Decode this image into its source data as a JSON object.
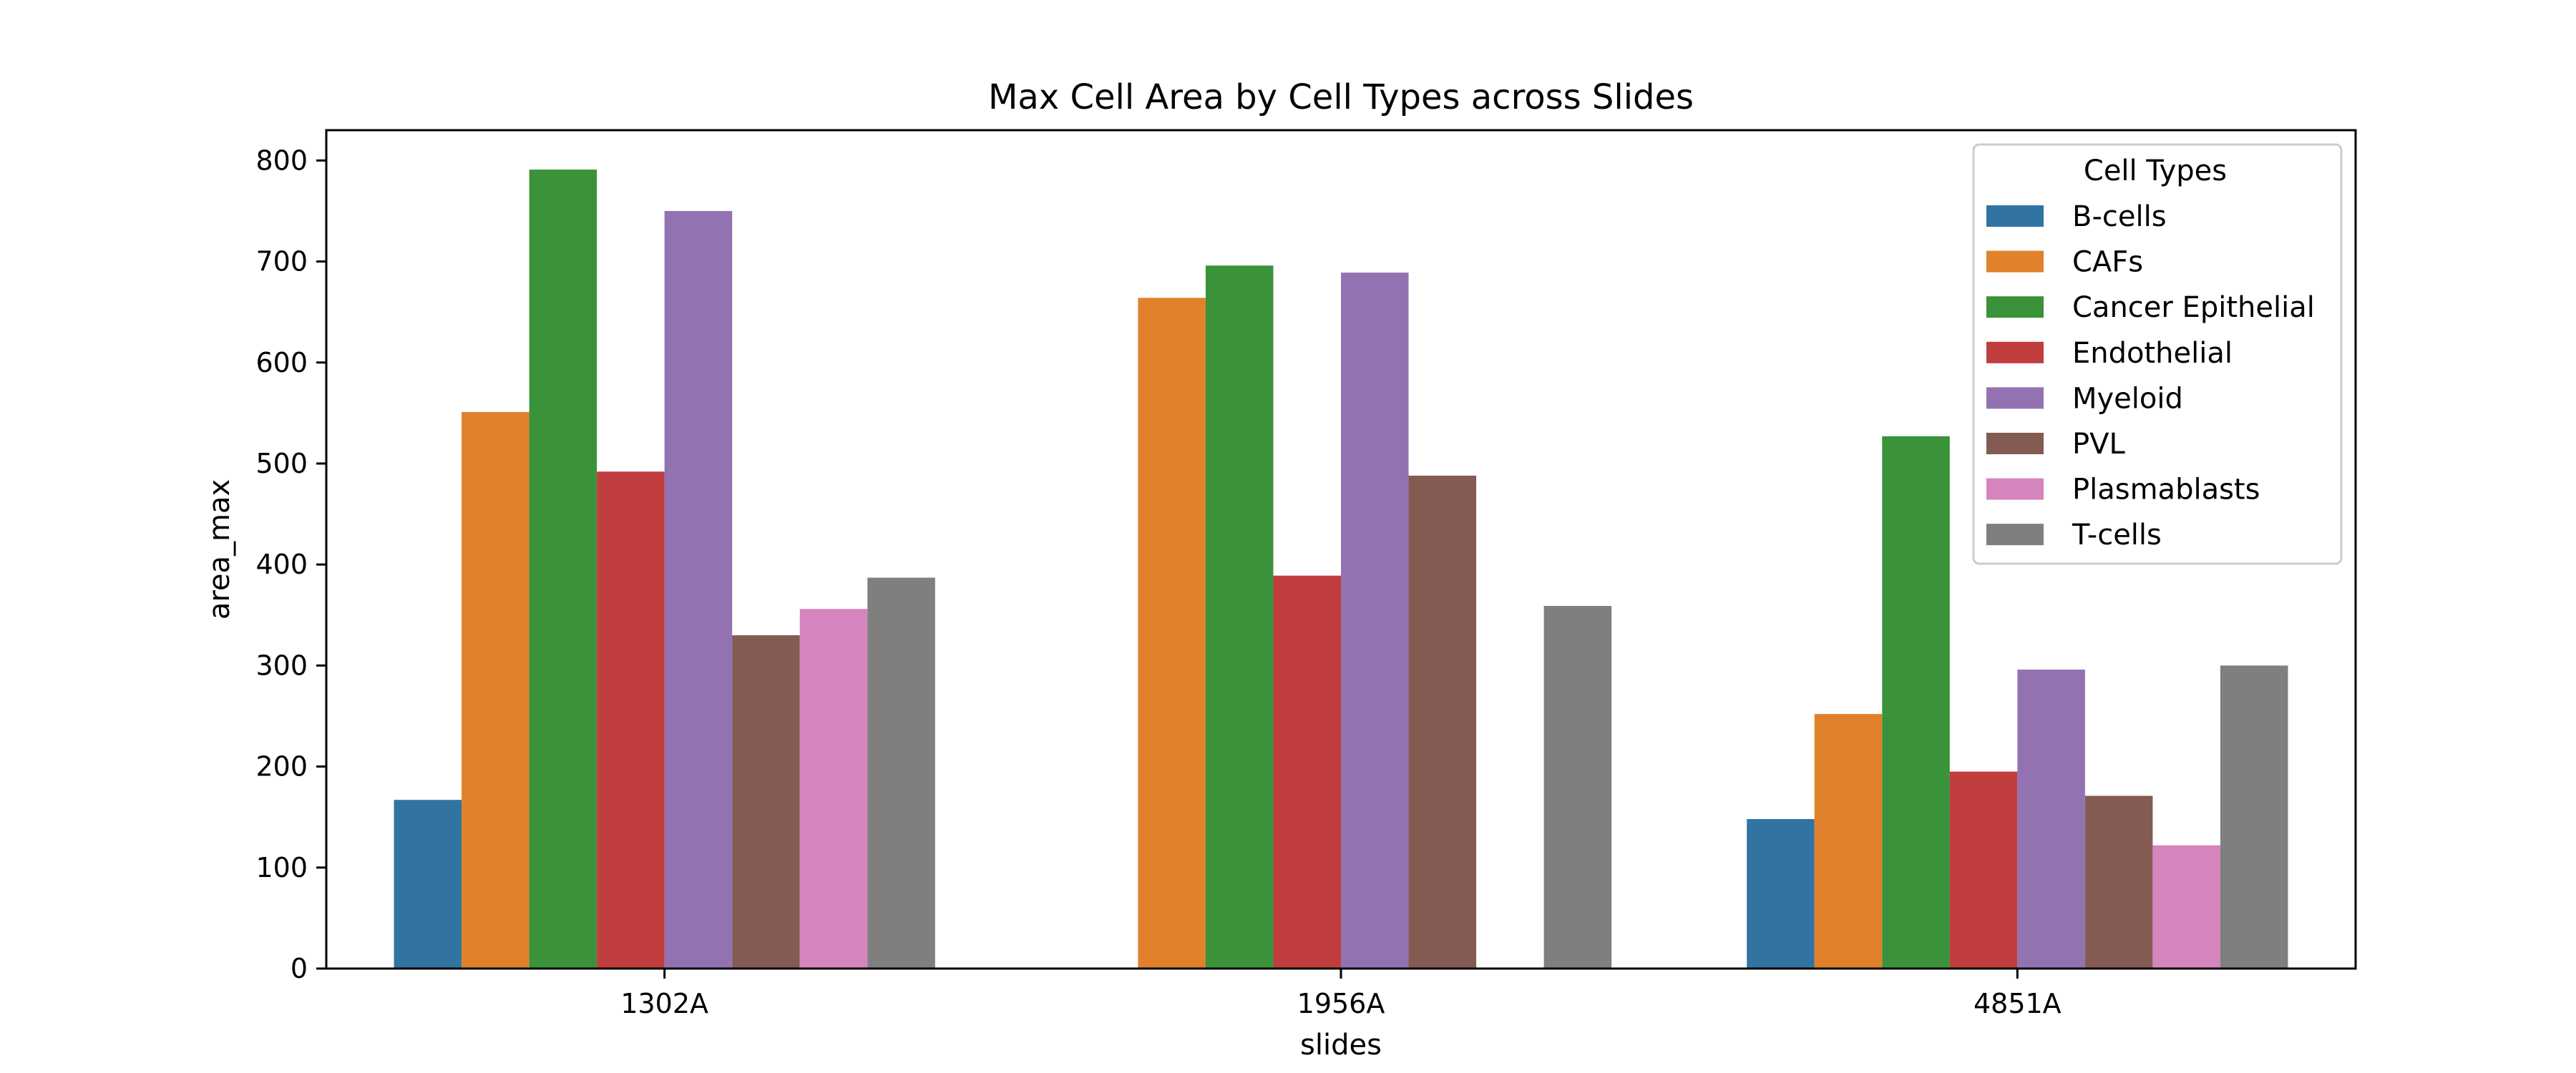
{
  "chart_data": {
    "type": "bar",
    "title": "Max Cell Area by Cell Types across Slides",
    "xlabel": "slides",
    "ylabel": "area_max",
    "categories": [
      "1302A",
      "1956A",
      "4851A"
    ],
    "ylim": [
      0,
      830
    ],
    "yticks": [
      0,
      100,
      200,
      300,
      400,
      500,
      600,
      700,
      800
    ],
    "grid": false,
    "legend": {
      "title": "Cell Types",
      "placement": "top-right"
    },
    "series": [
      {
        "name": "B-cells",
        "color": "#3274a1",
        "values": [
          167,
          null,
          148
        ]
      },
      {
        "name": "CAFs",
        "color": "#e1812c",
        "values": [
          551,
          664,
          252
        ]
      },
      {
        "name": "Cancer Epithelial",
        "color": "#3a923a",
        "values": [
          791,
          696,
          527
        ]
      },
      {
        "name": "Endothelial",
        "color": "#c03d3e",
        "values": [
          492,
          389,
          195
        ]
      },
      {
        "name": "Myeloid",
        "color": "#9372b2",
        "values": [
          750,
          689,
          296
        ]
      },
      {
        "name": "PVL",
        "color": "#845b53",
        "values": [
          330,
          488,
          171
        ]
      },
      {
        "name": "Plasmablasts",
        "color": "#d684bd",
        "values": [
          356,
          null,
          122
        ]
      },
      {
        "name": "T-cells",
        "color": "#7f7f7f",
        "values": [
          387,
          359,
          300
        ]
      }
    ]
  }
}
